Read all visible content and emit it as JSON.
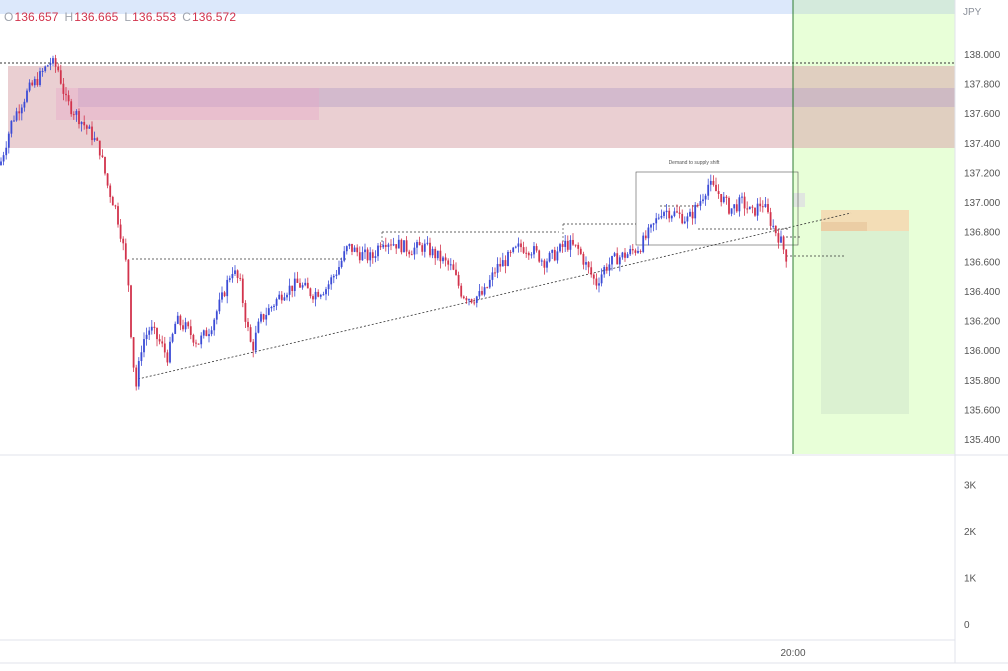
{
  "ohlc": {
    "o_key": "O",
    "o_val": "136.657",
    "h_key": "H",
    "h_val": "136.665",
    "l_key": "L",
    "l_val": "136.553",
    "c_key": "C",
    "c_val": "136.572"
  },
  "currency": "JPY",
  "annotation": "Demand to supply shift",
  "time_label": "20:00",
  "colors": {
    "up": "#3b4bd6",
    "down": "#d2334c",
    "supply_zone": "#d9a8ad",
    "projection": "#e8ffd8",
    "target_box": "#d9f0d0",
    "entry_box": "#f4d9b3",
    "session_line": "#2e7d32"
  },
  "chart_data": [
    {
      "type": "candlestick",
      "title": "",
      "ylim": [
        135.3,
        138.2
      ],
      "y_ticks": [
        "138.000",
        "137.800",
        "137.600",
        "137.400",
        "137.200",
        "137.000",
        "136.800",
        "136.600",
        "136.400",
        "136.200",
        "136.000",
        "135.800",
        "135.600",
        "135.400"
      ],
      "x_ticks": [
        "20:00"
      ],
      "last_bar": {
        "open": 136.657,
        "high": 136.665,
        "low": 136.553,
        "close": 136.572
      },
      "price_path": [
        [
          0,
          137.25
        ],
        [
          12,
          137.55
        ],
        [
          28,
          137.75
        ],
        [
          40,
          137.85
        ],
        [
          50,
          137.95
        ],
        [
          58,
          137.9
        ],
        [
          66,
          137.68
        ],
        [
          78,
          137.58
        ],
        [
          92,
          137.45
        ],
        [
          100,
          137.35
        ],
        [
          108,
          137.1
        ],
        [
          116,
          136.95
        ],
        [
          122,
          136.75
        ],
        [
          128,
          136.5
        ],
        [
          132,
          136.0
        ],
        [
          136,
          135.75
        ],
        [
          142,
          136.05
        ],
        [
          150,
          136.15
        ],
        [
          160,
          136.05
        ],
        [
          168,
          135.95
        ],
        [
          176,
          136.2
        ],
        [
          186,
          136.15
        ],
        [
          198,
          136.05
        ],
        [
          210,
          136.15
        ],
        [
          222,
          136.35
        ],
        [
          232,
          136.55
        ],
        [
          240,
          136.45
        ],
        [
          246,
          136.2
        ],
        [
          252,
          136.0
        ],
        [
          260,
          136.2
        ],
        [
          272,
          136.3
        ],
        [
          284,
          136.4
        ],
        [
          298,
          136.45
        ],
        [
          312,
          136.38
        ],
        [
          326,
          136.42
        ],
        [
          338,
          136.55
        ],
        [
          348,
          136.7
        ],
        [
          360,
          136.65
        ],
        [
          372,
          136.62
        ],
        [
          382,
          136.75
        ],
        [
          396,
          136.72
        ],
        [
          410,
          136.68
        ],
        [
          424,
          136.7
        ],
        [
          440,
          136.62
        ],
        [
          452,
          136.55
        ],
        [
          462,
          136.38
        ],
        [
          472,
          136.35
        ],
        [
          484,
          136.38
        ],
        [
          496,
          136.55
        ],
        [
          508,
          136.62
        ],
        [
          520,
          136.7
        ],
        [
          532,
          136.68
        ],
        [
          544,
          136.6
        ],
        [
          556,
          136.65
        ],
        [
          566,
          136.72
        ],
        [
          578,
          136.68
        ],
        [
          588,
          136.55
        ],
        [
          596,
          136.45
        ],
        [
          604,
          136.55
        ],
        [
          616,
          136.62
        ],
        [
          628,
          136.65
        ],
        [
          640,
          136.7
        ],
        [
          652,
          136.82
        ],
        [
          662,
          136.95
        ],
        [
          676,
          136.92
        ],
        [
          688,
          136.88
        ],
        [
          698,
          136.98
        ],
        [
          708,
          137.12
        ],
        [
          720,
          137.05
        ],
        [
          730,
          136.95
        ],
        [
          742,
          137.0
        ],
        [
          752,
          136.92
        ],
        [
          762,
          137.0
        ],
        [
          772,
          136.85
        ],
        [
          780,
          136.75
        ],
        [
          788,
          136.6
        ]
      ]
    },
    {
      "type": "bar",
      "title": "",
      "ylim": [
        0,
        3500
      ],
      "y_ticks": [
        "3K",
        "2K",
        "1K",
        "0"
      ],
      "values": []
    }
  ]
}
